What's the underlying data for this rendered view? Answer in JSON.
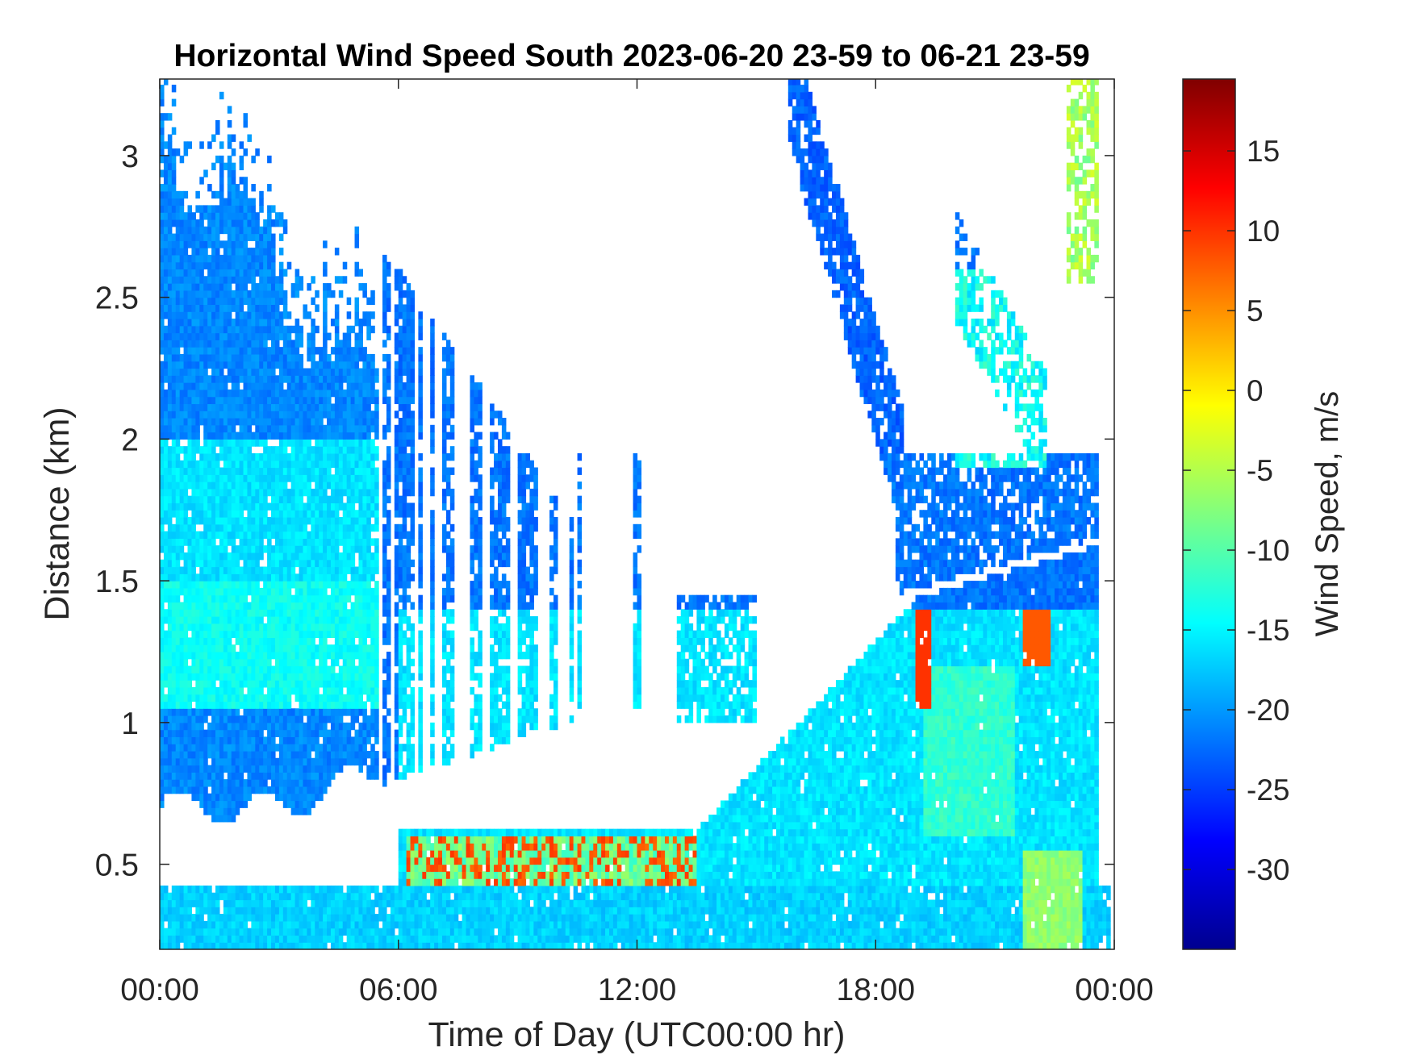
{
  "chart_data": {
    "type": "heatmap",
    "title": "Horizontal Wind Speed South 2023-06-20 23-59 to 06-21 23-59",
    "xlabel": "Time of Day (UTC00:00 hr)",
    "ylabel": "Distance (km)",
    "x_tick_labels": [
      "00:00",
      "06:00",
      "12:00",
      "18:00",
      "00:00"
    ],
    "x_tick_hours": [
      0,
      6,
      12,
      18,
      24
    ],
    "xlim_hours": [
      0,
      24
    ],
    "y_ticks": [
      0.5,
      1,
      1.5,
      2,
      2.5,
      3
    ],
    "y_tick_labels": [
      "0.5",
      "1",
      "1.5",
      "2",
      "2.5",
      "3"
    ],
    "ylim": [
      0.2,
      3.27
    ],
    "grid": false,
    "colorbar": {
      "label": "Wind Speed, m/s",
      "colormap": "jet",
      "range": [
        -35,
        19.5
      ],
      "ticks": [
        -30,
        -25,
        -20,
        -15,
        -10,
        -5,
        0,
        5,
        10,
        15
      ],
      "tick_labels": [
        "-30",
        "-25",
        "-20",
        "-15",
        "-10",
        "-5",
        "0",
        "5",
        "10",
        "15"
      ]
    },
    "regions": [
      {
        "name": "night-residual-layer",
        "hours": [
          0,
          5.5
        ],
        "km": [
          0.7,
          3.2
        ],
        "speed_ms": -18
      },
      {
        "name": "night-core",
        "hours": [
          0,
          5
        ],
        "km": [
          1.1,
          1.5
        ],
        "speed_ms": -14
      },
      {
        "name": "surface-layer",
        "hours": [
          0,
          24
        ],
        "km": [
          0.2,
          0.45
        ],
        "speed_ms": -17
      },
      {
        "name": "growing-boundary-layer",
        "hours": [
          6,
          24
        ],
        "km": [
          0.35,
          1.45
        ],
        "speed_ms": -15
      },
      {
        "name": "low-level-positive-streak",
        "hours": [
          6.2,
          13.5
        ],
        "km": [
          0.42,
          0.6
        ],
        "speed_ms": 5
      },
      {
        "name": "evening-positive-streak",
        "hours": [
          19,
          22.5
        ],
        "km": [
          1.05,
          1.4
        ],
        "speed_ms": 8
      },
      {
        "name": "upper-sloping-band",
        "hours": [
          15.8,
          18.7
        ],
        "km": [
          1.95,
          3.27
        ],
        "speed_ms": -22
      },
      {
        "name": "late-upper-patch",
        "hours": [
          22.8,
          23.9
        ],
        "km": [
          2.6,
          3.27
        ],
        "speed_ms": -7
      }
    ]
  }
}
